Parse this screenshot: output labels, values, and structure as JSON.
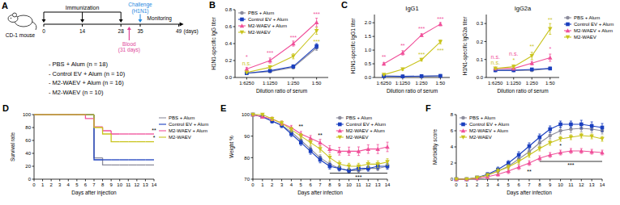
{
  "diagram": {
    "panel": "A",
    "animal": "CD-1 mouse",
    "timeline": {
      "days": [
        0,
        14,
        28,
        35,
        49
      ],
      "unit": "(days)",
      "immunization": {
        "label": "Immunization",
        "days": [
          0,
          14,
          28
        ]
      },
      "challenge": {
        "label": "Challenge",
        "sublabel": "(H1N1)",
        "day": 35,
        "color": "#1e88e0"
      },
      "blood": {
        "label": "Blood",
        "sublabel": "(31 days)",
        "day": 31,
        "color": "#e0479a"
      },
      "monitoring": {
        "label": "Monitoring",
        "from": 35,
        "to": 49
      }
    },
    "groups": [
      "- PBS + Alum (n = 18)",
      "- Control EV + Alum (n = 10)",
      "- M2-WAEV + Alum (n = 16)",
      "- M2-WAEV (n = 10)"
    ]
  },
  "chart_data": [
    {
      "type": "line",
      "panel": "B",
      "y_label": "H1N1-specific IgG titer",
      "x_label": "Dilution ratio of serum",
      "categories": [
        "1:6250",
        "1:1250",
        "1:250",
        "1:50"
      ],
      "ylim": [
        0,
        0.8
      ],
      "yticks": [
        {
          "value": 0,
          "label": "0.0"
        },
        {
          "value": 0.2,
          "label": "0.2"
        },
        {
          "value": 0.4,
          "label": "0.4"
        },
        {
          "value": 0.6,
          "label": "0.6"
        },
        {
          "value": 0.8,
          "label": "0.8"
        }
      ],
      "legend": "top-left",
      "series": [
        {
          "name": "PBS + Alum",
          "color": "#8c8c9c",
          "marker": "circle",
          "values": [
            0.05,
            0.07,
            0.12,
            0.35
          ],
          "errors": [
            0.01,
            0.01,
            0.02,
            0.03
          ]
        },
        {
          "name": "Control EV + Alum",
          "color": "#1a3fbf",
          "marker": "square",
          "values": [
            0.05,
            0.08,
            0.13,
            0.37
          ],
          "errors": [
            0.01,
            0.01,
            0.02,
            0.03
          ]
        },
        {
          "name": "M2-WAEV + Alum",
          "color": "#f0509a",
          "marker": "triangle",
          "values": [
            0.1,
            0.2,
            0.4,
            0.65
          ],
          "errors": [
            0.02,
            0.03,
            0.03,
            0.05
          ]
        },
        {
          "name": "M2-WAEV",
          "color": "#c9c41e",
          "marker": "triangle-down",
          "values": [
            0.06,
            0.12,
            0.25,
            0.55
          ],
          "errors": [
            0.01,
            0.02,
            0.03,
            0.04
          ]
        }
      ],
      "annotations": [
        {
          "text": "*",
          "x": 0,
          "y": 0.22,
          "color": "#f0509a"
        },
        {
          "text": "n.s.",
          "x": 0,
          "y": 0.14,
          "color": "#c9c41e"
        },
        {
          "text": "***",
          "x": 1,
          "y": 0.27,
          "color": "#f0509a"
        },
        {
          "text": "***",
          "x": 2,
          "y": 0.45,
          "color": "#f0509a"
        },
        {
          "text": "***",
          "x": 3,
          "y": 0.72,
          "color": "#f0509a"
        },
        {
          "text": "***",
          "x": 3,
          "y": 0.4,
          "color": "#c9c41e"
        }
      ]
    },
    {
      "type": "line",
      "panel": "C",
      "title": "IgG1",
      "y_label": "H1N1-specific IgG1 titer",
      "x_label": "Dilution ratio of serum",
      "categories": [
        "1:6250",
        "1:1250",
        "1:250",
        "1:50"
      ],
      "ylim": [
        0,
        2.3
      ],
      "yticks": [
        {
          "value": 0,
          "label": "0.0"
        },
        {
          "value": 0.5,
          "label": "0.5"
        },
        {
          "value": 1,
          "label": "1.0"
        },
        {
          "value": 1.5,
          "label": "1.5"
        },
        {
          "value": 2,
          "label": "2.0"
        }
      ],
      "series": [
        {
          "name": "PBS + Alum",
          "color": "#8c8c9c",
          "marker": "circle",
          "values": [
            0.05,
            0.04,
            0.04,
            0.06
          ],
          "errors": [
            0.01,
            0.01,
            0.01,
            0.01
          ]
        },
        {
          "name": "Control EV + Alum",
          "color": "#1a3fbf",
          "marker": "square",
          "values": [
            0.05,
            0.04,
            0.05,
            0.06
          ],
          "errors": [
            0.01,
            0.01,
            0.01,
            0.01
          ]
        },
        {
          "name": "M2-WAEV + Alum",
          "color": "#f0509a",
          "marker": "triangle",
          "values": [
            0.5,
            0.9,
            1.55,
            1.95
          ],
          "errors": [
            0.05,
            0.08,
            0.05,
            0.06
          ]
        },
        {
          "name": "M2-WAEV",
          "color": "#c9c41e",
          "marker": "triangle-down",
          "values": [
            0.1,
            0.3,
            0.65,
            1.3
          ],
          "errors": [
            0.02,
            0.04,
            0.05,
            0.07
          ]
        }
      ],
      "annotations": [
        {
          "text": "**",
          "x": 0,
          "y": 0.68,
          "color": "#f0509a"
        },
        {
          "text": "**",
          "x": 1,
          "y": 1.1,
          "color": "#f0509a"
        },
        {
          "text": "***",
          "x": 2,
          "y": 1.72,
          "color": "#f0509a"
        },
        {
          "text": "***",
          "x": 3,
          "y": 2.06,
          "color": "#f0509a"
        },
        {
          "text": "***",
          "x": 2,
          "y": 0.78,
          "color": "#c9c41e"
        },
        {
          "text": "***",
          "x": 3,
          "y": 0.9,
          "color": "#c9c41e"
        }
      ]
    },
    {
      "type": "line",
      "title": "IgG2a",
      "y_label": "H1N1-specific IgG2a titer",
      "x_label": "Dilution ratio of serum",
      "categories": [
        "1:6250",
        "1:1250",
        "1:250",
        "1:50"
      ],
      "ylim": [
        0,
        0.35
      ],
      "yticks": [
        {
          "value": 0,
          "label": "0.0"
        },
        {
          "value": 0.1,
          "label": "0.1"
        },
        {
          "value": 0.2,
          "label": "0.2"
        },
        {
          "value": 0.3,
          "label": "0.3"
        }
      ],
      "legend": "right",
      "series": [
        {
          "name": "PBS + Alum",
          "color": "#8c8c9c",
          "marker": "circle",
          "values": [
            0.04,
            0.04,
            0.04,
            0.05
          ],
          "errors": [
            0.005,
            0.005,
            0.005,
            0.005
          ]
        },
        {
          "name": "Control EV + Alum",
          "color": "#1a3fbf",
          "marker": "square",
          "values": [
            0.04,
            0.04,
            0.045,
            0.05
          ],
          "errors": [
            0.005,
            0.005,
            0.005,
            0.005
          ]
        },
        {
          "name": "M2-WAEV + Alum",
          "color": "#f0509a",
          "marker": "triangle",
          "values": [
            0.05,
            0.05,
            0.08,
            0.11
          ],
          "errors": [
            0.005,
            0.005,
            0.01,
            0.02
          ]
        },
        {
          "name": "M2-WAEV",
          "color": "#c9c41e",
          "marker": "triangle-down",
          "values": [
            0.05,
            0.06,
            0.12,
            0.27
          ],
          "errors": [
            0.005,
            0.01,
            0.02,
            0.03
          ]
        }
      ],
      "annotations": [
        {
          "text": "n.s.",
          "x": 0,
          "y": 0.07,
          "color": "#c9c41e"
        },
        {
          "text": "n.s.",
          "x": 0,
          "y": 0.105,
          "color": "#f0509a"
        },
        {
          "text": "*",
          "x": 1,
          "y": 0.085,
          "color": "#c9c41e"
        },
        {
          "text": "n.s.",
          "x": 1,
          "y": 0.12,
          "color": "#f0509a"
        },
        {
          "text": "**",
          "x": 2,
          "y": 0.16,
          "color": "#c9c41e"
        },
        {
          "text": "**",
          "x": 3,
          "y": 0.31,
          "color": "#c9c41e"
        },
        {
          "text": "*",
          "x": 3,
          "y": 0.15,
          "color": "#f0509a"
        }
      ]
    },
    {
      "type": "line",
      "line_style": "step",
      "panel": "D",
      "y_label": "Survival rate",
      "x_label": "Days after injection",
      "x": [
        0,
        1,
        2,
        3,
        4,
        5,
        6,
        7,
        8,
        9,
        10,
        11,
        12,
        13,
        14
      ],
      "xlim": [
        0,
        14
      ],
      "xticks": [
        0,
        1,
        2,
        3,
        4,
        5,
        6,
        7,
        8,
        9,
        10,
        11,
        12,
        13,
        14
      ],
      "ylim": [
        0,
        100
      ],
      "yticks": [
        0,
        20,
        40,
        60,
        80,
        100
      ],
      "legend": "right",
      "series": [
        {
          "name": "PBS + Alum",
          "color": "#8c8c9c",
          "values": [
            100,
            100,
            100,
            100,
            100,
            100,
            100,
            33,
            22,
            22,
            22,
            22,
            22,
            22,
            22
          ]
        },
        {
          "name": "Control EV + Alum",
          "color": "#1a3fbf",
          "values": [
            100,
            100,
            100,
            100,
            100,
            100,
            100,
            30,
            30,
            30,
            30,
            30,
            30,
            30,
            30
          ]
        },
        {
          "name": "M2-WAEV + Alum",
          "color": "#f0509a",
          "values": [
            100,
            100,
            100,
            100,
            100,
            100,
            94,
            81,
            75,
            70,
            70,
            70,
            70,
            70,
            70
          ]
        },
        {
          "name": "M2-WAEV",
          "color": "#c9c41e",
          "values": [
            100,
            100,
            100,
            100,
            100,
            100,
            100,
            80,
            70,
            58,
            58,
            58,
            58,
            58,
            58
          ]
        }
      ],
      "annotations": [
        {
          "text": "**",
          "x": 14,
          "y": 72,
          "color": "#000000"
        },
        {
          "text": "*",
          "x": 14,
          "y": 61,
          "color": "#000000"
        }
      ]
    },
    {
      "type": "line",
      "panel": "E",
      "y_label": "Weight %",
      "x_label": "Days after infection",
      "x": [
        0,
        1,
        2,
        3,
        4,
        5,
        6,
        7,
        8,
        9,
        10,
        11,
        12,
        13,
        14
      ],
      "xlim": [
        0,
        14
      ],
      "xticks": [
        0,
        1,
        2,
        3,
        4,
        5,
        6,
        7,
        8,
        9,
        10,
        11,
        12,
        13,
        14
      ],
      "ylim": [
        70,
        100
      ],
      "yticks": [
        70,
        80,
        90,
        100
      ],
      "legend": "top-right",
      "series": [
        {
          "name": "PBS + Alum",
          "color": "#8c8c9c",
          "marker": "circle",
          "values": [
            100,
            99,
            97,
            95,
            92,
            88,
            84,
            80,
            77,
            75,
            74,
            74,
            75,
            75,
            76
          ],
          "errors": [
            0,
            0.5,
            0.8,
            1,
            1,
            1.2,
            1.3,
            1.3,
            1.2,
            1.1,
            1,
            1,
            1,
            1.1,
            1.1
          ]
        },
        {
          "name": "Control EV + Alum",
          "color": "#1a3fbf",
          "marker": "square",
          "values": [
            100,
            99,
            97,
            95,
            91,
            87,
            83,
            79,
            76,
            75,
            74,
            75,
            75,
            76,
            76
          ],
          "errors": [
            0,
            0.6,
            0.9,
            1,
            1.2,
            1.3,
            1.4,
            1.4,
            1.3,
            1.2,
            1.2,
            1.2,
            1.3,
            1.3,
            1.4
          ]
        },
        {
          "name": "M2-WAEV + Alum",
          "color": "#f0509a",
          "marker": "triangle",
          "values": [
            100,
            99,
            98,
            96,
            94,
            91,
            89,
            87,
            84,
            83,
            83,
            83,
            84,
            84,
            85
          ],
          "errors": [
            0,
            0.5,
            0.8,
            1,
            1,
            1.2,
            1.3,
            1.5,
            1.6,
            1.8,
            1.9,
            2,
            2,
            2.1,
            2.2
          ]
        },
        {
          "name": "M2-WAEV",
          "color": "#c9c41e",
          "marker": "triangle-down",
          "values": [
            100,
            100,
            98,
            96,
            93,
            90,
            87,
            84,
            80,
            77,
            76,
            76,
            77,
            77,
            78
          ],
          "errors": [
            0,
            0.4,
            0.8,
            1,
            1.1,
            1.2,
            1.3,
            1.4,
            1.5,
            1.4,
            1.4,
            1.4,
            1.5,
            1.5,
            1.5
          ]
        }
      ],
      "annotations": [
        {
          "text": "**",
          "x": 5,
          "y": 93.5,
          "color": "#000000"
        },
        {
          "text": "**",
          "x": 7,
          "y": 89.5,
          "color": "#000000"
        },
        {
          "text": "***",
          "x": 8,
          "x2": 14,
          "y": 72.8,
          "color": "#000000"
        }
      ]
    },
    {
      "type": "line",
      "panel": "F",
      "y_label": "Morbidity score",
      "x_label": "Days after infection",
      "x": [
        0,
        1,
        2,
        3,
        4,
        5,
        6,
        7,
        8,
        9,
        10,
        11,
        12,
        13,
        14
      ],
      "xlim": [
        0,
        14
      ],
      "xticks": [
        0,
        1,
        2,
        3,
        4,
        5,
        6,
        7,
        8,
        9,
        10,
        11,
        12,
        13,
        14
      ],
      "ylim": [
        0,
        8
      ],
      "yticks": [
        0,
        2,
        4,
        6,
        8
      ],
      "legend": "top-left",
      "series": [
        {
          "name": "PBS + Alum",
          "color": "#8c8c9c",
          "marker": "circle",
          "values": [
            0,
            0,
            0.2,
            0.5,
            1,
            1.6,
            2.5,
            3.4,
            4.5,
            5.4,
            6,
            6.2,
            6.3,
            6.2,
            6
          ],
          "errors": [
            0,
            0,
            0.1,
            0.2,
            0.3,
            0.3,
            0.4,
            0.4,
            0.4,
            0.4,
            0.4,
            0.4,
            0.4,
            0.4,
            0.4
          ]
        },
        {
          "name": "Control EV + Alum",
          "color": "#1a3fbf",
          "marker": "square",
          "values": [
            0,
            0,
            0.2,
            0.6,
            1.2,
            2,
            3,
            4.1,
            5.2,
            6.2,
            6.8,
            6.8,
            6.8,
            6.6,
            6.4
          ],
          "errors": [
            0,
            0,
            0.1,
            0.2,
            0.3,
            0.3,
            0.4,
            0.4,
            0.4,
            0.4,
            0.4,
            0.4,
            0.5,
            0.5,
            0.5
          ]
        },
        {
          "name": "M2-WAEV + Alum",
          "color": "#f0509a",
          "marker": "triangle",
          "values": [
            0,
            0,
            0.1,
            0.3,
            0.6,
            1,
            1.5,
            2,
            2.6,
            3,
            3.3,
            3.5,
            3.5,
            3.4,
            3.3
          ],
          "errors": [
            0,
            0,
            0.1,
            0.2,
            0.2,
            0.3,
            0.3,
            0.3,
            0.3,
            0.3,
            0.3,
            0.3,
            0.3,
            0.3,
            0.3
          ]
        },
        {
          "name": "M2-WAEV",
          "color": "#c9c41e",
          "marker": "triangle-down",
          "values": [
            0,
            0,
            0.2,
            0.5,
            1,
            1.5,
            2.2,
            3,
            3.8,
            4.5,
            5,
            5.2,
            5.4,
            5.3,
            5
          ],
          "errors": [
            0,
            0,
            0.1,
            0.2,
            0.3,
            0.3,
            0.3,
            0.3,
            0.3,
            0.3,
            0.3,
            0.3,
            0.3,
            0.3,
            0.3
          ]
        }
      ],
      "annotations": [
        {
          "text": "**",
          "x": 7,
          "y": 0.7,
          "color": "#000000"
        },
        {
          "text": "*",
          "x": 10,
          "y": 3.95,
          "color": "#000000"
        },
        {
          "text": "***",
          "x": 8,
          "x2": 14,
          "y": 2.2,
          "color": "#000000"
        }
      ]
    }
  ]
}
